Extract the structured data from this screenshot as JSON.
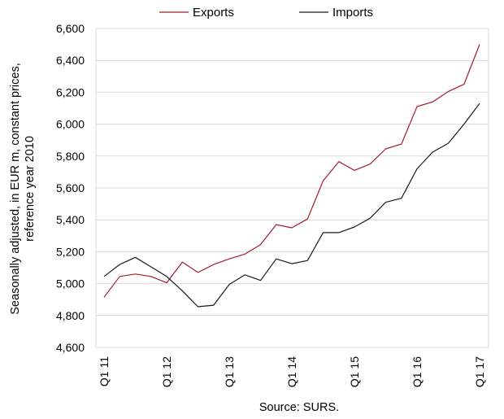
{
  "chart_data": {
    "type": "line",
    "x": [
      "Q1 11",
      "Q2 11",
      "Q3 11",
      "Q4 11",
      "Q1 12",
      "Q2 12",
      "Q3 12",
      "Q4 12",
      "Q1 13",
      "Q2 13",
      "Q3 13",
      "Q4 13",
      "Q1 14",
      "Q2 14",
      "Q3 14",
      "Q4 14",
      "Q1 15",
      "Q2 15",
      "Q3 15",
      "Q4 15",
      "Q1 16",
      "Q2 16",
      "Q3 16",
      "Q4 16",
      "Q1 17"
    ],
    "x_tick_labels": [
      "Q1 11",
      "Q1 12",
      "Q1 13",
      "Q1 14",
      "Q1 15",
      "Q1 16",
      "Q1 17"
    ],
    "x_tick_indices": [
      0,
      4,
      8,
      12,
      16,
      20,
      24
    ],
    "series": [
      {
        "name": "Exports",
        "color": "#a6192e",
        "values": [
          4915,
          5045,
          5060,
          5045,
          5005,
          5135,
          5070,
          5120,
          5155,
          5185,
          5245,
          5370,
          5350,
          5405,
          5645,
          5765,
          5710,
          5750,
          5845,
          5875,
          6110,
          6140,
          6205,
          6250,
          6500
        ]
      },
      {
        "name": "Imports",
        "color": "#1a1a1a",
        "values": [
          5045,
          5120,
          5165,
          5105,
          5045,
          4955,
          4855,
          4865,
          4995,
          5055,
          5020,
          5155,
          5125,
          5145,
          5320,
          5320,
          5355,
          5410,
          5510,
          5535,
          5720,
          5825,
          5880,
          6000,
          6130
        ]
      }
    ],
    "ylabel_lines": [
      "Seasonally adjusted, in EUR m, constant prices,",
      "reference year 2010"
    ],
    "ylim": [
      4600,
      6600
    ],
    "yticks": [
      4600,
      4800,
      5000,
      5200,
      5400,
      5600,
      5800,
      6000,
      6200,
      6400,
      6600
    ],
    "ytick_labels": [
      "4,600",
      "4,800",
      "5,000",
      "5,200",
      "5,400",
      "5,600",
      "5,800",
      "6,000",
      "6,200",
      "6,400",
      "6,600"
    ],
    "grid": true,
    "legend_position": "top",
    "source_note": "Source: SURS."
  }
}
